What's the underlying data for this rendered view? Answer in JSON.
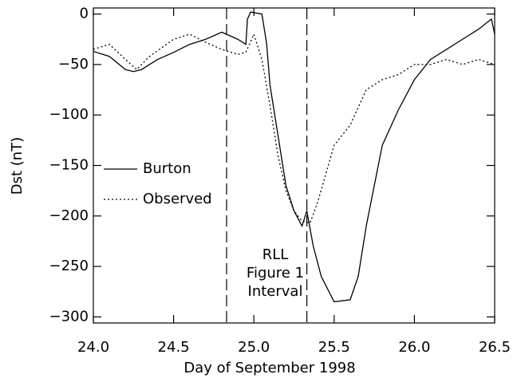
{
  "chart_data": {
    "type": "line",
    "xlabel": "Day of September 1998",
    "ylabel": "Dst (nT)",
    "xlim": [
      24.0,
      26.5
    ],
    "ylim": [
      -306,
      6
    ],
    "xticks": [
      {
        "value": 24.0,
        "label": "24.0"
      },
      {
        "value": 24.5,
        "label": "24.5"
      },
      {
        "value": 25.0,
        "label": "25.0"
      },
      {
        "value": 25.5,
        "label": "25.5"
      },
      {
        "value": 26.0,
        "label": "26.0"
      },
      {
        "value": 26.5,
        "label": "26.5"
      }
    ],
    "yticks": [
      {
        "value": -300,
        "label": "−300"
      },
      {
        "value": -250,
        "label": "−250"
      },
      {
        "value": -200,
        "label": "−200"
      },
      {
        "value": -150,
        "label": "−150"
      },
      {
        "value": -100,
        "label": "−100"
      },
      {
        "value": -50,
        "label": "−50"
      },
      0
    ],
    "vlines": [
      24.83,
      25.33
    ],
    "annotation": [
      "RLL",
      "Figure 1",
      "Interval"
    ],
    "series": [
      {
        "name": "Burton",
        "color": "#000",
        "dash": "none",
        "x": [
          24.0,
          24.1,
          24.2,
          24.25,
          24.3,
          24.4,
          24.5,
          24.6,
          24.7,
          24.8,
          24.9,
          24.95,
          24.96,
          24.98,
          25.05,
          25.08,
          25.1,
          25.15,
          25.2,
          25.25,
          25.3,
          25.33,
          25.37,
          25.42,
          25.5,
          25.6,
          25.65,
          25.7,
          25.8,
          25.9,
          26.0,
          26.1,
          26.2,
          26.3,
          26.4,
          26.48,
          26.5
        ],
        "values": [
          -37,
          -42,
          -55,
          -57,
          -55,
          -45,
          -38,
          -30,
          -25,
          -18,
          -25,
          -30,
          -5,
          2,
          0,
          -30,
          -70,
          -120,
          -170,
          -195,
          -210,
          -195,
          -230,
          -260,
          -285,
          -283,
          -260,
          -210,
          -130,
          -95,
          -65,
          -45,
          -35,
          -25,
          -15,
          -5,
          -20
        ]
      },
      {
        "name": "Observed",
        "color": "#000",
        "dash": "2 3",
        "x": [
          24.0,
          24.1,
          24.2,
          24.27,
          24.35,
          24.5,
          24.6,
          24.7,
          24.8,
          24.9,
          24.95,
          25.0,
          25.05,
          25.1,
          25.15,
          25.2,
          25.25,
          25.3,
          25.35,
          25.4,
          25.5,
          25.6,
          25.7,
          25.8,
          25.9,
          26.0,
          26.1,
          26.2,
          26.3,
          26.4,
          26.5
        ],
        "values": [
          -35,
          -30,
          -45,
          -55,
          -42,
          -25,
          -20,
          -28,
          -35,
          -40,
          -38,
          -20,
          -45,
          -90,
          -140,
          -175,
          -195,
          -205,
          -207,
          -185,
          -130,
          -110,
          -75,
          -65,
          -60,
          -50,
          -50,
          -45,
          -50,
          -45,
          -50
        ]
      }
    ]
  }
}
